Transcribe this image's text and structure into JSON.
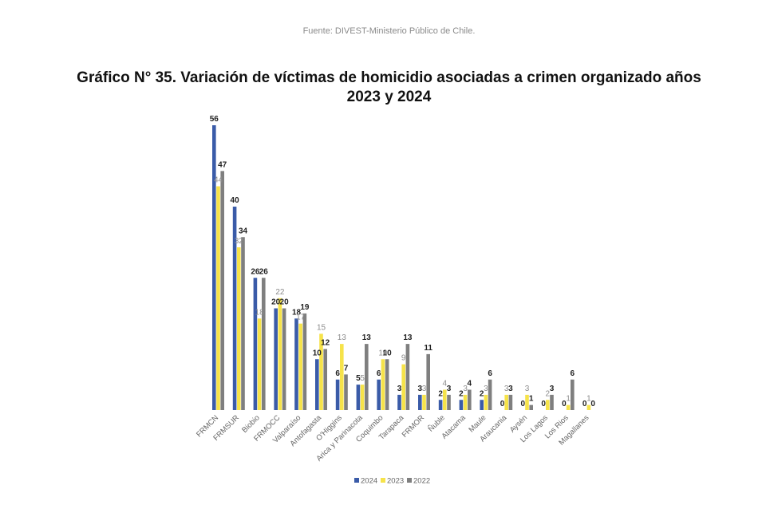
{
  "source_text": "Fuente: DIVEST-Ministerio Público de Chile.",
  "chart_data": {
    "type": "bar",
    "title_line1": "Gráfico N° 35. Variación de víctimas de homicidio asociadas a crimen organizado años",
    "title_line2": "2023 y 2024",
    "xlabel": "",
    "ylabel": "",
    "ylim": [
      0,
      56
    ],
    "grid": false,
    "legend_position": "bottom",
    "categories": [
      "FRMCN",
      "FRMSUR",
      "Biobio",
      "FRMOCC",
      "Valparaíso",
      "Antofagasta",
      "O'Higgins",
      "Arica y Parinacota",
      "Coquimbo",
      "Tarapaca",
      "FRMOR",
      "Ñuble",
      "Atacama",
      "Maule",
      "Araucania",
      "Aysén",
      "Los Lagos",
      "Los Rios",
      "Magallanes"
    ],
    "series": [
      {
        "name": "2024",
        "color": "#3a5ba8",
        "values": [
          56,
          40,
          26,
          20,
          18,
          10,
          6,
          5,
          6,
          3,
          3,
          2,
          2,
          2,
          0,
          0,
          0,
          0,
          0
        ]
      },
      {
        "name": "2023",
        "color": "#f6e34a",
        "values": [
          44,
          32,
          18,
          22,
          17,
          15,
          13,
          5,
          10,
          9,
          3,
          4,
          3,
          3,
          3,
          3,
          2,
          1,
          1
        ]
      },
      {
        "name": "2022",
        "color": "#7f7f7f",
        "values": [
          47,
          34,
          26,
          20,
          19,
          12,
          7,
          13,
          10,
          13,
          11,
          3,
          4,
          6,
          3,
          1,
          3,
          6,
          0
        ]
      }
    ]
  }
}
